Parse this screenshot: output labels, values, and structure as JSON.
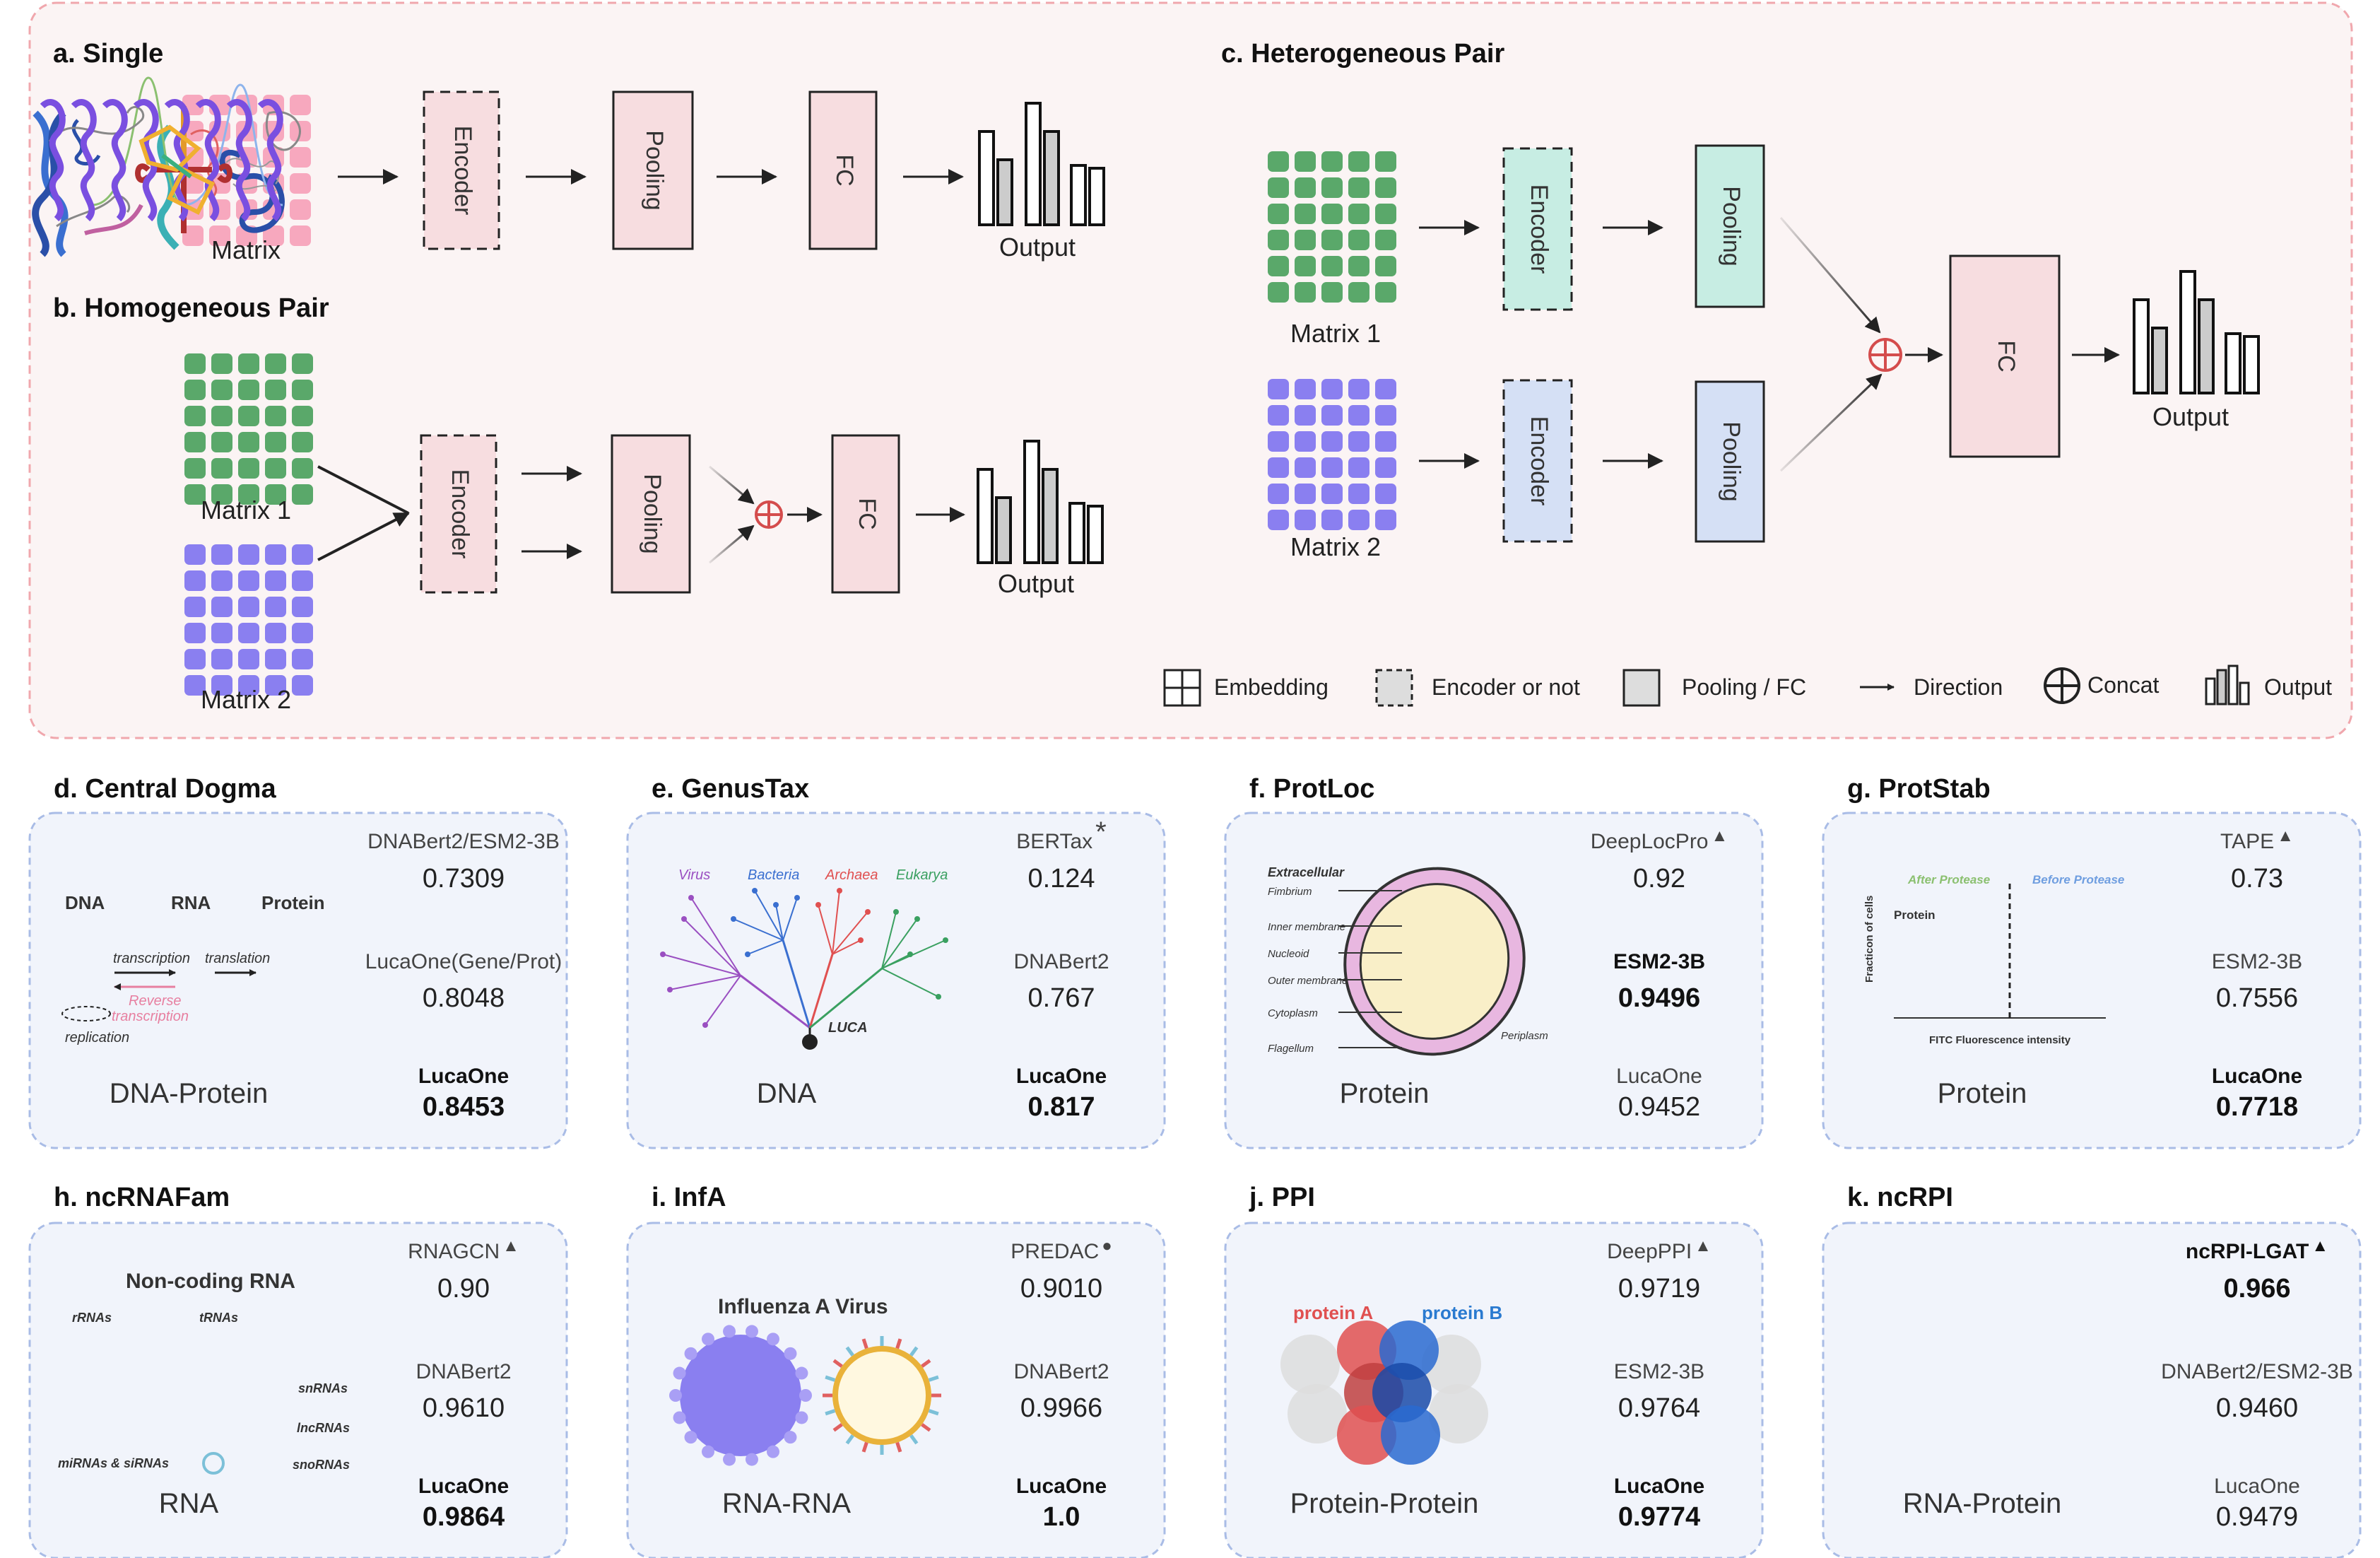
{
  "panel_a": {
    "title": "a. Single",
    "matrix_label": "Matrix",
    "encoder": "Encoder",
    "pooling": "Pooling",
    "fc": "FC",
    "output": "Output"
  },
  "panel_b": {
    "title": "b. Homogeneous Pair",
    "matrix1": "Matrix 1",
    "matrix2": "Matrix 2",
    "encoder": "Encoder",
    "pooling": "Pooling",
    "fc": "FC",
    "output": "Output"
  },
  "panel_c": {
    "title": "c. Heterogeneous Pair",
    "matrix1": "Matrix 1",
    "matrix2": "Matrix 2",
    "encoder1": "Encoder",
    "encoder2": "Encoder",
    "pooling1": "Pooling",
    "pooling2": "Pooling",
    "fc": "FC",
    "output": "Output"
  },
  "legend": {
    "embedding": "Embedding",
    "encoder": "Encoder or not",
    "pooling": "Pooling / FC",
    "direction": "Direction",
    "concat": "Concat",
    "output": "Output"
  },
  "colors": {
    "pink_matrix": "#f7a8be",
    "green_matrix": "#5aa86a",
    "purple_matrix": "#8a7ff0",
    "pink_box": "#f7dde0",
    "teal_box": "#c7ede3",
    "blue_box": "#d5e0f5",
    "concat": "#d44c4c",
    "bg_top": "#fbf4f4",
    "bg_panel": "#f1f4fb"
  },
  "tasks": [
    {
      "title": "d. Central Dogma",
      "caption": "DNA-Protein",
      "entries": [
        {
          "name": "DNABert2/ESM2-3B",
          "value": "0.7309",
          "mark": "",
          "bold": false
        },
        {
          "name": "LucaOne(Gene/Prot)",
          "value": "0.8048",
          "mark": "",
          "bold": false
        },
        {
          "name": "LucaOne",
          "value": "0.8453",
          "mark": "",
          "bold": true
        }
      ],
      "illus": {
        "dna": "DNA",
        "rna": "RNA",
        "protein": "Protein",
        "transcription": "transcription",
        "translation": "translation",
        "reverse": "Reverse",
        "reverse2": "transcription",
        "replication": "replication"
      }
    },
    {
      "title": "e. GenusTax",
      "caption": "DNA",
      "entries": [
        {
          "name": "BERTax",
          "value": "0.124",
          "mark": "*",
          "bold": false
        },
        {
          "name": "DNABert2",
          "value": "0.767",
          "mark": "",
          "bold": false
        },
        {
          "name": "LucaOne",
          "value": "0.817",
          "mark": "",
          "bold": true
        }
      ],
      "illus": {
        "virus": "Virus",
        "bacteria": "Bacteria",
        "archaea": "Archaea",
        "eukarya": "Eukarya",
        "luca": "LUCA"
      }
    },
    {
      "title": "f. ProtLoc",
      "caption": "Protein",
      "entries": [
        {
          "name": "DeepLocPro",
          "value": "0.92",
          "mark": "▲",
          "bold": false
        },
        {
          "name": "ESM2-3B",
          "value": "0.9496",
          "mark": "",
          "bold": true
        },
        {
          "name": "LucaOne",
          "value": "0.9452",
          "mark": "",
          "bold": false
        }
      ],
      "illus": {
        "extracellular": "Extracellular",
        "fimbrium": "Fimbrium",
        "inner": "Inner membrane",
        "nucleoid": "Nucleoid",
        "outer": "Outer membrane",
        "cytoplasm": "Cytoplasm",
        "flagellum": "Flagellum",
        "periplasm": "Periplasm"
      }
    },
    {
      "title": "g. ProtStab",
      "caption": "Protein",
      "entries": [
        {
          "name": "TAPE",
          "value": "0.73",
          "mark": "▲",
          "bold": false
        },
        {
          "name": "ESM2-3B",
          "value": "0.7556",
          "mark": "",
          "bold": false
        },
        {
          "name": "LucaOne",
          "value": "0.7718",
          "mark": "",
          "bold": true
        }
      ],
      "illus": {
        "after": "After Protease",
        "before": "Before Protease",
        "protein": "Protein",
        "ylabel": "Fracticon of cells",
        "xlabel": "FITC Fluorescence intensity"
      }
    },
    {
      "title": "h. ncRNAFam",
      "caption": "RNA",
      "entries": [
        {
          "name": "RNAGCN",
          "value": "0.90",
          "mark": "▲",
          "bold": false
        },
        {
          "name": "DNABert2",
          "value": "0.9610",
          "mark": "",
          "bold": false
        },
        {
          "name": "LucaOne",
          "value": "0.9864",
          "mark": "",
          "bold": true
        }
      ],
      "illus": {
        "head": "Non-coding RNA",
        "rrnas": "rRNAs",
        "trnas": "tRNAs",
        "snrnas": "snRNAs",
        "lncrnas": "lncRNAs",
        "mirnas": "miRNAs & siRNAs",
        "snornas": "snoRNAs"
      }
    },
    {
      "title": "i. InfA",
      "caption": "RNA-RNA",
      "entries": [
        {
          "name": "PREDAC",
          "value": "0.9010",
          "mark": "●",
          "bold": false
        },
        {
          "name": "DNABert2",
          "value": "0.9966",
          "mark": "",
          "bold": false
        },
        {
          "name": "LucaOne",
          "value": "1.0",
          "mark": "",
          "bold": true
        }
      ],
      "illus": {
        "head": "Influenza A Virus"
      }
    },
    {
      "title": "j. PPI",
      "caption": "Protein-Protein",
      "entries": [
        {
          "name": "DeepPPI",
          "value": "0.9719",
          "mark": "▲",
          "bold": false
        },
        {
          "name": "ESM2-3B",
          "value": "0.9764",
          "mark": "",
          "bold": false
        },
        {
          "name": "LucaOne",
          "value": "0.9774",
          "mark": "",
          "bold": true
        }
      ],
      "illus": {
        "pa": "protein A",
        "pb": "protein B"
      }
    },
    {
      "title": "k. ncRPI",
      "caption": "RNA-Protein",
      "entries": [
        {
          "name": "ncRPI-LGAT",
          "value": "0.966",
          "mark": "▲",
          "bold": true
        },
        {
          "name": "DNABert2/ESM2-3B",
          "value": "0.9460",
          "mark": "",
          "bold": false
        },
        {
          "name": "LucaOne",
          "value": "0.9479",
          "mark": "",
          "bold": false
        }
      ],
      "illus": {}
    }
  ]
}
